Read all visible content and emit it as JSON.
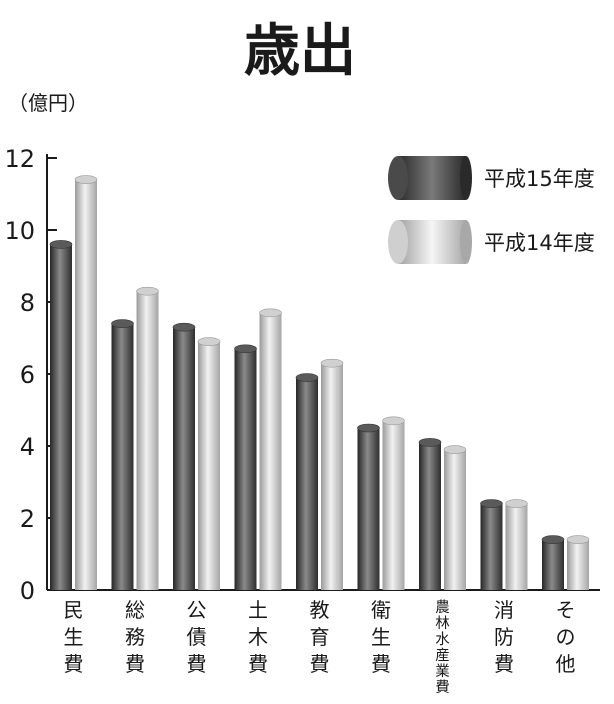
{
  "chart_data": {
    "type": "bar",
    "title": "歳出",
    "ylabel": "（億円）",
    "ylim": [
      0,
      12
    ],
    "yticks": [
      "0",
      "2",
      "4",
      "6",
      "8",
      "10",
      "12"
    ],
    "categories": [
      "民生費",
      "総務費",
      "公債費",
      "土木費",
      "教育費",
      "衛生費",
      "農林水産業費",
      "消防費",
      "その他"
    ],
    "series": [
      {
        "name": "平成15年度",
        "values": [
          9.6,
          7.4,
          7.3,
          6.7,
          5.9,
          4.5,
          4.1,
          2.4,
          1.4
        ],
        "color": "#4a4a4a"
      },
      {
        "name": "平成14年度",
        "values": [
          11.4,
          8.3,
          6.9,
          7.7,
          6.3,
          4.7,
          3.9,
          2.4,
          1.4
        ],
        "color": "#bdbdbd"
      }
    ],
    "legend_position": "top-right",
    "grid": false
  }
}
